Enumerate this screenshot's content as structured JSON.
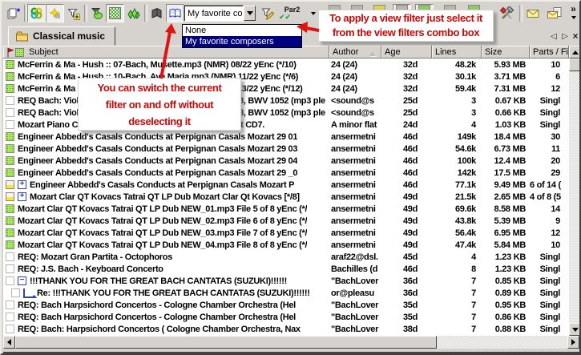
{
  "window": {
    "tab": {
      "label": "Classical music"
    }
  },
  "toolbar": {
    "par2_button": {
      "label": "Par2"
    },
    "filter_combo": {
      "value": "My favorite comp",
      "dropdown": {
        "options": [
          "None",
          "My favorite composers"
        ],
        "selected": "My favorite composers"
      }
    }
  },
  "icons": {
    "par2_checks": "✔✔",
    "chevron_more": "»",
    "nav_prev": "◁",
    "nav_next": "▷",
    "nav_close": "×"
  },
  "callouts": {
    "apply_filter": {
      "lines": [
        "To apply a view filter just select it",
        "from the view filters combo box"
      ]
    },
    "toggle_filter": {
      "lines": [
        "You can switch the current",
        "filter on and off without",
        "deselecting it"
      ]
    }
  },
  "colors": {
    "accent_red": "#c40a0a",
    "arrow_red": "#e01212",
    "selection_blue": "#000080",
    "indicator_green": "#a9ea5e",
    "chrome_grey": "#d6d3ce"
  },
  "table": {
    "columns": [
      "Subject",
      "Author",
      "Age",
      "Lines",
      "Size",
      "Parts / Fi"
    ],
    "sorted_column": "Author",
    "rows": [
      {
        "indicator": "green",
        "subject": "McFerrin & Ma - Hush :: 07-Bach, Musette.mp3 (NMR) 08/22 yEnc (*/10)",
        "author": "24 (24)",
        "age": "32d",
        "lines": "48.2k",
        "size": "5.93 MB",
        "parts": "10"
      },
      {
        "indicator": "green",
        "subject": "McFerrin & Ma - Hush :: 10-Bach, Ave Maria.mp3 (NMR) 11/22 yEnc (*/6)",
        "author": "24 (24)",
        "age": "32d",
        "lines": "30.1k",
        "size": "3.71 MB",
        "parts": "6"
      },
      {
        "indicator": "green",
        "subject": "McFerrin & Ma - Hush :: 12-Bach, Badinerie.mp3 (NMR) 13/22 yEnc (*/12)",
        "author": "24 (24)",
        "age": "32d",
        "lines": "59.4k",
        "size": "7.31 MB",
        "parts": "12"
      },
      {
        "indicator": "empty",
        "subject": "REQ Bach: Violin Concertos BWV 1041 - 1043, BWV 1068, BWV 1052 (mp3 ple",
        "author": "<sound@s",
        "age": "25d",
        "lines": "3",
        "size": "0.67 KB",
        "parts": "Singl"
      },
      {
        "indicator": "empty",
        "subject": "REQ Bach: Violin Concertos BWV 1041 - 1043, BWV 1068, BWV 1052 (mp3 ple",
        "author": "<sound@s",
        "age": "25d",
        "lines": "3",
        "size": "0.66 KB",
        "parts": "Singl"
      },
      {
        "indicator": "empty",
        "subject": "Mozart Piano Concertos - MUSIC LOVER - Please Repost CD7.",
        "author": "A minor flat",
        "age": "24d",
        "lines": "4",
        "size": "1.03 KB",
        "parts": "Singl"
      },
      {
        "indicator": "green",
        "subject": "Engineer Abbedd's Casals Conducts at Perpignan Casals Mozart 29 01",
        "author": "ansermetni",
        "age": "46d",
        "lines": "149k",
        "size": "18.4 MB",
        "parts": "30"
      },
      {
        "indicator": "green",
        "subject": "Engineer Abbedd's Casals Conducts at Perpignan Casals Mozart 29 03",
        "author": "ansermetni",
        "age": "46d",
        "lines": "54.6k",
        "size": "6.73 MB",
        "parts": "11"
      },
      {
        "indicator": "green",
        "subject": "Engineer Abbedd's Casals Conducts at Perpignan Casals Mozart 29 04",
        "author": "ansermetni",
        "age": "46d",
        "lines": "100k",
        "size": "12.4 MB",
        "parts": "20"
      },
      {
        "indicator": "green",
        "subject": "Engineer Abbedd's Casals Conducts at Perpignan Casals Mozart 29 _0",
        "author": "ansermetni",
        "age": "46d",
        "lines": "142k",
        "size": "17.5 MB",
        "parts": "29"
      },
      {
        "indicator": "partial",
        "expand": "plus",
        "subject": "Engineer Abbedd's Casals Conducts at Perpignan Casals Mozart P",
        "author": "ansermetni",
        "age": "46d",
        "lines": "77.1k",
        "size": "9.49 MB",
        "parts": "6 of 14 ("
      },
      {
        "indicator": "partial",
        "expand": "plus",
        "subject": "Mozart Clar QT Kovacs Tatrai QT LP Dub Mozart Clar Qt Kovacs [*/8]",
        "author": "ansermetni",
        "age": "49d",
        "lines": "21.5k",
        "size": "2.65 MB",
        "parts": "4 of 8 (5"
      },
      {
        "indicator": "green",
        "subject": "Mozart Clar QT Kovacs Tatrai QT LP Dub NEW_01.mp3 File 5 of 8 yEnc (*/",
        "author": "ansermetni",
        "age": "49d",
        "lines": "69.6k",
        "size": "8.58 MB",
        "parts": "14"
      },
      {
        "indicator": "green",
        "subject": "Mozart Clar QT Kovacs Tatrai QT LP Dub NEW_02.mp3 File 6 of 8 yEnc (*/",
        "author": "ansermetni",
        "age": "49d",
        "lines": "43.8k",
        "size": "5.39 MB",
        "parts": "9"
      },
      {
        "indicator": "green",
        "subject": "Mozart Clar QT Kovacs Tatrai QT LP Dub NEW_03.mp3 File 7 of 8 yEnc (*/",
        "author": "ansermetni",
        "age": "49d",
        "lines": "56.4k",
        "size": "6.95 MB",
        "parts": "12"
      },
      {
        "indicator": "green",
        "subject": "Mozart Clar QT Kovacs Tatrai QT LP Dub NEW_04.mp3 File 8 of 8 yEnc (*/",
        "author": "ansermetni",
        "age": "49d",
        "lines": "47.4k",
        "size": "5.84 MB",
        "parts": "10"
      },
      {
        "indicator": "empty",
        "subject": "REQ: Mozart Gran Partita - Octophoros",
        "author": "araf22@dsl.",
        "age": "45d",
        "lines": "4",
        "size": "1.23 KB",
        "parts": "Singl"
      },
      {
        "indicator": "empty",
        "subject": "REQ: J.S. Bach - Keyboard Concerto",
        "author": "Bachilles (d",
        "age": "46d",
        "lines": "8",
        "size": "1.23 KB",
        "parts": "Singl"
      },
      {
        "indicator": "empty",
        "expand": "minus",
        "subject": "!!!THANK YOU FOR THE GREAT BACH CANTATAS (SUZUKI)!!!!!!",
        "author": "\"BachLover",
        "age": "36d",
        "lines": "7",
        "size": "0.85 KB",
        "parts": "Singl"
      },
      {
        "indicator": "empty",
        "branch": true,
        "subject": "Re: !!!THANK YOU FOR THE GREAT BACH CANTATAS (SUZUKI)!!!!!!",
        "author": "or@pleasu",
        "age": "36d",
        "lines": "7",
        "size": "0.89 KB",
        "parts": "Singl"
      },
      {
        "indicator": "empty",
        "subject": "REQ: Bach Harpsichord Concertos - Cologne Chamber Orchestra (Hel",
        "author": "\"BachLover",
        "age": "35d",
        "lines": "7",
        "size": "0.95 KB",
        "parts": "Singl"
      },
      {
        "indicator": "empty",
        "subject": "REQ: Bach Harpsichord Concertos - Cologne Chamber Orchestra (Hel",
        "author": "\"BachLover",
        "age": "35d",
        "lines": "7",
        "size": "0.86 KB",
        "parts": "Singl"
      },
      {
        "indicator": "empty",
        "subject": "REQ: Bach: Harpsichord Concertos ( Cologne Chamber Orchestra, Nax",
        "author": "\"BachLover",
        "age": "38d",
        "lines": "7",
        "size": "0.88 KB",
        "parts": "Singl"
      }
    ]
  }
}
